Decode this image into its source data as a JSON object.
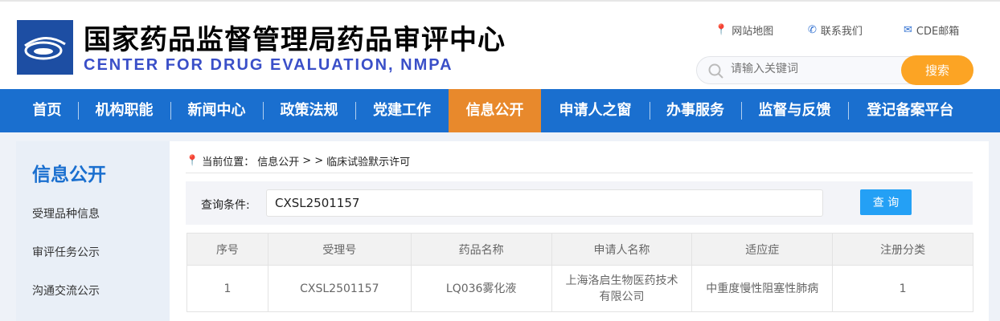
{
  "header": {
    "title_cn": "国家药品监督管理局药品审评中心",
    "title_en": "CENTER FOR DRUG EVALUATION, NMPA",
    "links": [
      {
        "label": "网站地图",
        "icon": "map-pin-icon"
      },
      {
        "label": "联系我们",
        "icon": "phone-icon"
      },
      {
        "label": "CDE邮箱",
        "icon": "mail-icon"
      }
    ],
    "search_placeholder": "请输入关键词",
    "search_button": "搜索"
  },
  "nav": {
    "items": [
      "首页",
      "机构职能",
      "新闻中心",
      "政策法规",
      "党建工作",
      "信息公开",
      "申请人之窗",
      "办事服务",
      "监督与反馈",
      "登记备案平台"
    ],
    "active": "信息公开"
  },
  "sidebar": {
    "title": "信息公开",
    "items": [
      "受理品种信息",
      "审评任务公示",
      "沟通交流公示"
    ]
  },
  "breadcrumb": {
    "prefix": "当前位置：",
    "path": "信息公开",
    "sep": "> >",
    "current": "临床试验默示许可"
  },
  "query": {
    "label": "查询条件:",
    "value": "CXSL2501157",
    "button": "查 询"
  },
  "table": {
    "headers": [
      "序号",
      "受理号",
      "药品名称",
      "申请人名称",
      "适应症",
      "注册分类"
    ],
    "rows": [
      [
        "1",
        "CXSL2501157",
        "LQ036雾化液",
        "上海洛启生物医药技术有限公司",
        "中重度慢性阻塞性肺病",
        "1"
      ]
    ]
  },
  "colors": {
    "nav": "#1a6fcf",
    "active": "#e8892c",
    "search_button": "#fca424",
    "query_button": "#24a0f5"
  }
}
